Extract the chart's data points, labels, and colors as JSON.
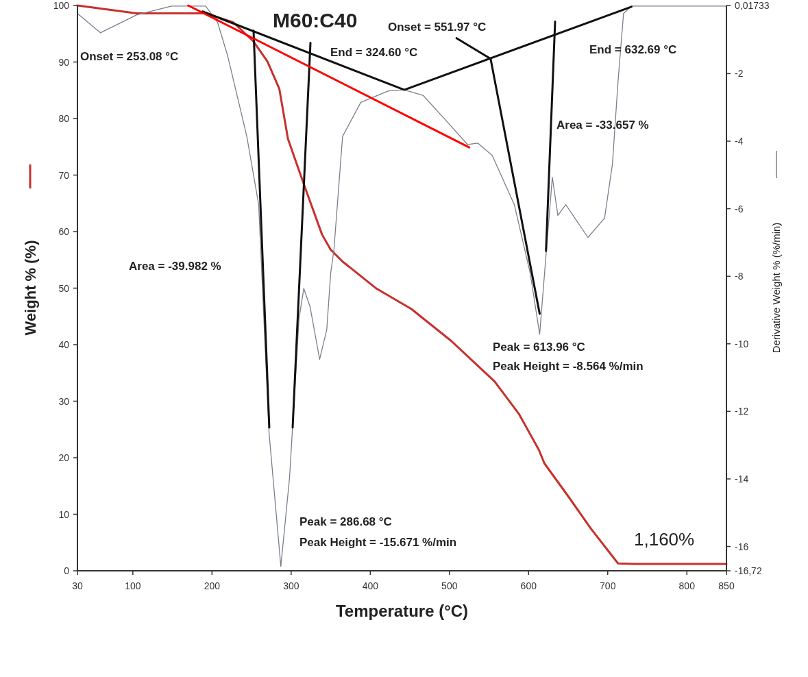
{
  "chart_data": {
    "type": "line",
    "title": "M60:C40",
    "xlabel": "Temperature (°C)",
    "ylabel": "Weight % (%)",
    "y2label": "Derivative Weight % (%/min)",
    "xlim": [
      30,
      850
    ],
    "xticks": [
      30,
      100,
      200,
      300,
      400,
      500,
      600,
      700,
      800,
      850
    ],
    "ylim": [
      0,
      100
    ],
    "yticks": [
      0,
      10,
      20,
      30,
      40,
      50,
      60,
      70,
      80,
      90,
      100
    ],
    "y2lim": [
      -16.72,
      0.01733
    ],
    "y2ticks": [
      {
        "value": 0.01733,
        "label": "0,01733"
      },
      -2,
      -4,
      -6,
      -8,
      -10,
      -12,
      -14,
      -16,
      {
        "value": -16.72,
        "label": "-16,72"
      }
    ],
    "grid": false,
    "series": [
      {
        "color": "#c8302c",
        "x": [
          30,
          105,
          192,
          227,
          252,
          270,
          285,
          296,
          316,
          339,
          350,
          365,
          408,
          452,
          502,
          557,
          588,
          613,
          620,
          651,
          679,
          713,
          734,
          850
        ],
        "values": [
          100,
          98.6,
          98.6,
          97,
          93.7,
          90.1,
          85.3,
          76.4,
          68.4,
          59.5,
          56.8,
          54.7,
          49.9,
          46.3,
          40.7,
          33.5,
          27.7,
          21.4,
          19,
          13,
          7.4,
          1.3,
          1.2,
          1.2
        ]
      },
      {
        "color": "#7a7f8c",
        "axis": "y2",
        "x": [
          30,
          59,
          105,
          149,
          192,
          207,
          220,
          244,
          259,
          272,
          287,
          298,
          310,
          316,
          324,
          336,
          345,
          350,
          354,
          365,
          388,
          423,
          443,
          467,
          498,
          523,
          536,
          554,
          582,
          602,
          614,
          623,
          630,
          637,
          647,
          675,
          696,
          706,
          713,
          720,
          730,
          850
        ],
        "values": [
          -0.22,
          -0.79,
          -0.26,
          0,
          0,
          -0.48,
          -1.49,
          -3.86,
          -5.88,
          -12.61,
          -16.59,
          -13.96,
          -9.25,
          -8.36,
          -8.91,
          -10.46,
          -9.58,
          -7.9,
          -7.23,
          -3.86,
          -2.85,
          -2.51,
          -2.48,
          -2.65,
          -3.45,
          -4.1,
          -4.06,
          -4.42,
          -5.88,
          -7.9,
          -9.72,
          -7.09,
          -5.07,
          -6.2,
          -5.88,
          -6.85,
          -6.28,
          -4.67,
          -2.24,
          -0.22,
          0,
          0
        ]
      },
      {
        "color": "#111111",
        "axis": "y2",
        "x": [
          188,
          443,
          730
        ],
        "values": [
          -0.16,
          -2.48,
          -0.02
        ]
      },
      {
        "color": "#111111",
        "axis": "y2",
        "x": [
          509,
          552,
          614
        ],
        "values": [
          -0.95,
          -1.56,
          -9.11
        ]
      },
      {
        "color": "#111111",
        "axis": "y2",
        "x": [
          633.5,
          622
        ],
        "values": [
          -0.46,
          -7.25
        ]
      },
      {
        "color": "#111111",
        "axis": "y2",
        "x": [
          252.5,
          272.4
        ],
        "values": [
          -0.73,
          -12.48
        ]
      },
      {
        "color": "#111111",
        "axis": "y2",
        "x": [
          324.4,
          301.9
        ],
        "values": [
          -1.09,
          -12.48
        ]
      },
      {
        "color": "#ff0000",
        "x": [
          170,
          525
        ],
        "values": [
          100,
          74.9
        ]
      }
    ],
    "annotations": [
      "Onset = 253.08 °C",
      "End = 324.60 °C",
      "Onset = 551.97 °C",
      "End = 632.69 °C",
      "Area = -33.657 %",
      "Area = -39.982 %",
      "Peak = 613.96 °C",
      "Peak Height = -8.564 %/min",
      "Peak = 286.68 °C",
      "Peak Height = -15.671 %/min",
      "1,160%"
    ]
  }
}
